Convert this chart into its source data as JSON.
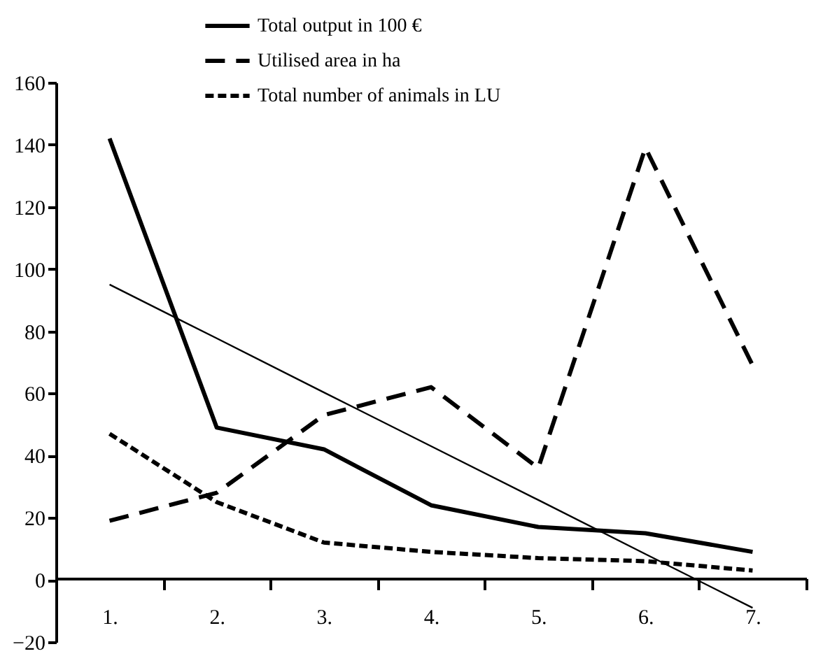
{
  "chart_data": {
    "type": "line",
    "categories": [
      "1.",
      "2.",
      "3.",
      "4.",
      "5.",
      "6.",
      "7."
    ],
    "series": [
      {
        "name": "Total output in 100 €",
        "color": "#000000",
        "line_style": "solid",
        "values": [
          142,
          49,
          42,
          24,
          17,
          15,
          9
        ]
      },
      {
        "name": "Utilised area in ha",
        "color": "#000000",
        "line_style": "dashed",
        "values": [
          19,
          28,
          53,
          62,
          36,
          139,
          69
        ]
      },
      {
        "name": "Total number of animals in LU",
        "color": "#000000",
        "line_style": "dotted",
        "values": [
          47,
          25,
          12,
          9,
          7,
          6,
          3
        ]
      },
      {
        "type": "line",
        "color": "#000000",
        "line_style": "solid",
        "values": [
          95,
          77.7,
          60.3,
          43,
          25.7,
          8.3,
          -9
        ]
      }
    ],
    "ylim": [
      -20,
      160
    ],
    "yticks": [
      -20,
      0,
      20,
      40,
      60,
      80,
      100,
      120,
      140,
      160
    ],
    "grid": false,
    "legend": "top",
    "marker": "none"
  }
}
